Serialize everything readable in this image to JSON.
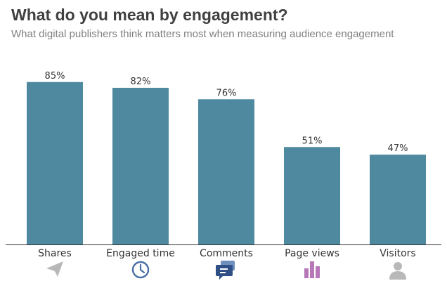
{
  "chart_data": {
    "type": "bar",
    "title": "What do you mean by engagement?",
    "subtitle": "What digital publishers think matters most when measuring audience engagement",
    "categories": [
      "Shares",
      "Engaged time",
      "Comments",
      "Page views",
      "Visitors"
    ],
    "values": [
      85,
      82,
      76,
      51,
      47
    ],
    "value_labels": [
      "85%",
      "82%",
      "76%",
      "51%",
      "47%"
    ],
    "icons": [
      "paper-plane-icon",
      "clock-icon",
      "chat-bubbles-icon",
      "bar-chart-icon",
      "person-icon"
    ],
    "ylim": [
      0,
      100
    ],
    "grid": false,
    "colors": {
      "bar": "#4e899f",
      "title": "#404040",
      "subtitle": "#7f7f7f",
      "icon_gray": "#b8b8b8",
      "icon_blue": "#4a6fa5",
      "icon_navy": "#2f4f86",
      "icon_purple": "#b678b8",
      "baseline": "#333333"
    }
  }
}
